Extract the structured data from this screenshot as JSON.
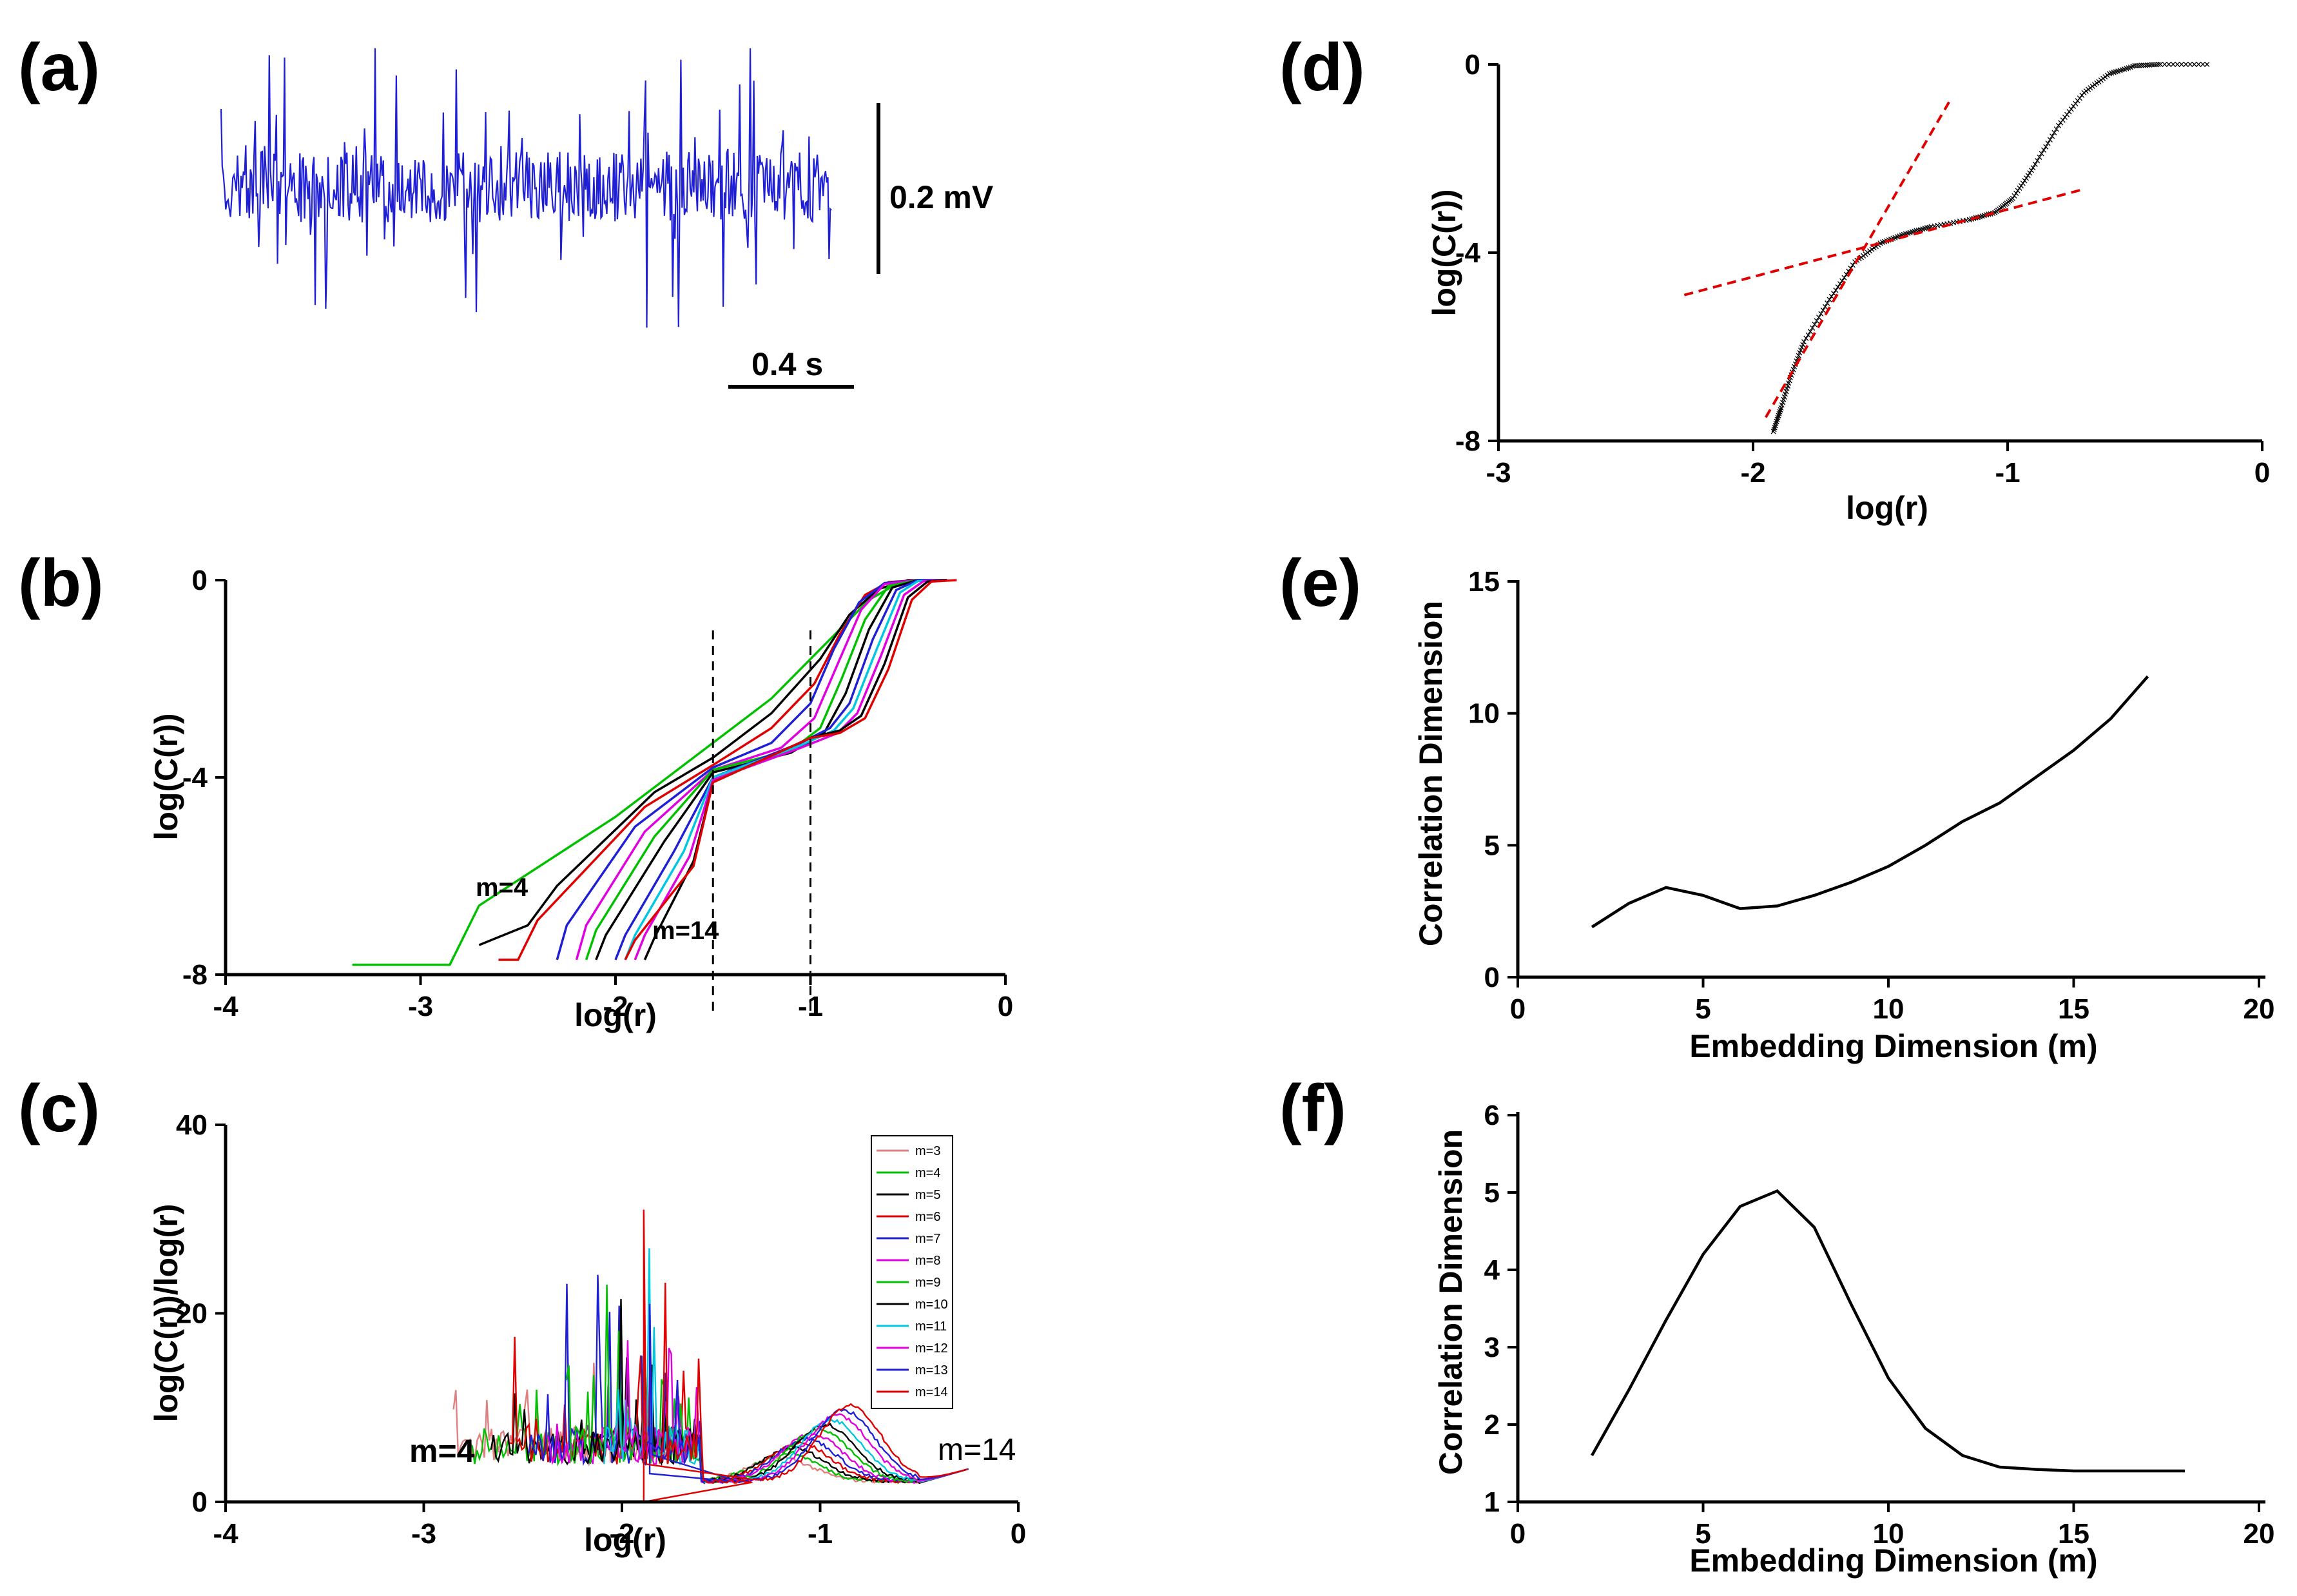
{
  "chart_data": [
    {
      "panel": "(a)",
      "type": "line",
      "title": "",
      "xlabel": "",
      "ylabel": "",
      "scale_bars": {
        "vertical": "0.2 mV",
        "horizontal": "0.4 s"
      },
      "series": [
        {
          "color": "#1f1fd6",
          "description_samples": 520,
          "values": []
        }
      ]
    },
    {
      "panel": "(b)",
      "type": "line",
      "xlabel": "log(r)",
      "ylabel": "log(C(r))",
      "xlim": [
        -4,
        0
      ],
      "ylim": [
        -8,
        0
      ],
      "xticks": [
        "-4",
        "-3",
        "-2",
        "-1",
        "0"
      ],
      "yticks": [
        "-8",
        "-4",
        "0"
      ],
      "annotations": [
        "m=4",
        "m=14"
      ],
      "vlines": [
        -1.5,
        -1.0
      ],
      "series": [
        {
          "name": "m=3",
          "color": "#00c000",
          "points": [
            [
              -3.35,
              -7.8
            ],
            [
              -2.85,
              -7.8
            ],
            [
              -2.7,
              -6.6
            ],
            [
              -2.0,
              -4.8
            ],
            [
              -1.2,
              -2.4
            ],
            [
              -0.9,
              -1.2
            ],
            [
              -0.7,
              -0.4
            ],
            [
              -0.55,
              -0.06
            ],
            [
              -0.45,
              0
            ],
            [
              -0.3,
              0
            ]
          ]
        },
        {
          "name": "m=4",
          "color": "#000000",
          "points": [
            [
              -2.7,
              -7.4
            ],
            [
              -2.45,
              -7.0
            ],
            [
              -2.3,
              -6.2
            ],
            [
              -1.8,
              -4.3
            ],
            [
              -1.5,
              -3.6
            ],
            [
              -1.2,
              -2.7
            ],
            [
              -0.95,
              -1.6
            ],
            [
              -0.8,
              -0.7
            ],
            [
              -0.65,
              -0.18
            ],
            [
              -0.5,
              0
            ],
            [
              -0.3,
              0
            ]
          ]
        },
        {
          "name": "m=5",
          "color": "#e00000",
          "points": [
            [
              -2.6,
              -7.7
            ],
            [
              -2.5,
              -7.7
            ],
            [
              -2.4,
              -6.9
            ],
            [
              -1.85,
              -4.6
            ],
            [
              -1.5,
              -3.75
            ],
            [
              -1.2,
              -3.0
            ],
            [
              -0.98,
              -2.1
            ],
            [
              -0.85,
              -1.1
            ],
            [
              -0.72,
              -0.3
            ],
            [
              -0.6,
              -0.04
            ],
            [
              -0.45,
              0
            ],
            [
              -0.3,
              0
            ]
          ]
        },
        {
          "name": "m=6",
          "color": "#1f1fd6",
          "points": [
            [
              -2.3,
              -7.7
            ],
            [
              -2.25,
              -7.0
            ],
            [
              -1.9,
              -5.0
            ],
            [
              -1.5,
              -3.8
            ],
            [
              -1.2,
              -3.3
            ],
            [
              -1.0,
              -2.5
            ],
            [
              -0.88,
              -1.4
            ],
            [
              -0.75,
              -0.45
            ],
            [
              -0.62,
              -0.06
            ],
            [
              -0.45,
              0
            ],
            [
              -0.3,
              0
            ]
          ]
        },
        {
          "name": "m=7",
          "color": "#e000e0",
          "points": [
            [
              -2.2,
              -7.7
            ],
            [
              -2.15,
              -7.0
            ],
            [
              -1.85,
              -5.1
            ],
            [
              -1.5,
              -3.85
            ],
            [
              -1.15,
              -3.4
            ],
            [
              -0.98,
              -2.8
            ],
            [
              -0.86,
              -1.7
            ],
            [
              -0.74,
              -0.6
            ],
            [
              -0.62,
              -0.08
            ],
            [
              -0.45,
              0
            ],
            [
              -0.3,
              0
            ]
          ]
        },
        {
          "name": "m=8",
          "color": "#00c000",
          "points": [
            [
              -2.15,
              -7.7
            ],
            [
              -2.1,
              -7.1
            ],
            [
              -1.8,
              -5.2
            ],
            [
              -1.5,
              -3.85
            ],
            [
              -1.1,
              -3.45
            ],
            [
              -0.95,
              -3.0
            ],
            [
              -0.84,
              -2.0
            ],
            [
              -0.72,
              -0.8
            ],
            [
              -0.6,
              -0.12
            ],
            [
              -0.45,
              0
            ],
            [
              -0.3,
              0
            ]
          ]
        },
        {
          "name": "m=9",
          "color": "#000000",
          "points": [
            [
              -2.1,
              -7.7
            ],
            [
              -2.05,
              -7.2
            ],
            [
              -1.75,
              -5.3
            ],
            [
              -1.5,
              -3.9
            ],
            [
              -1.1,
              -3.5
            ],
            [
              -0.93,
              -3.1
            ],
            [
              -0.82,
              -2.3
            ],
            [
              -0.7,
              -1.0
            ],
            [
              -0.58,
              -0.15
            ],
            [
              -0.45,
              0
            ],
            [
              -0.3,
              0
            ]
          ]
        },
        {
          "name": "m=10",
          "color": "#1f1fd6",
          "points": [
            [
              -2.0,
              -7.7
            ],
            [
              -1.95,
              -7.2
            ],
            [
              -1.7,
              -5.5
            ],
            [
              -1.5,
              -4.0
            ],
            [
              -1.05,
              -3.3
            ],
            [
              -0.9,
              -3.0
            ],
            [
              -0.8,
              -2.5
            ],
            [
              -0.68,
              -1.2
            ],
            [
              -0.56,
              -0.2
            ],
            [
              -0.45,
              0
            ],
            [
              -0.3,
              0
            ]
          ]
        },
        {
          "name": "m=11",
          "color": "#00c8e0",
          "points": [
            [
              -1.95,
              -7.7
            ],
            [
              -1.9,
              -7.2
            ],
            [
              -1.65,
              -5.5
            ],
            [
              -1.5,
              -4.0
            ],
            [
              -1.05,
              -3.35
            ],
            [
              -0.88,
              -3.05
            ],
            [
              -0.78,
              -2.6
            ],
            [
              -0.66,
              -1.4
            ],
            [
              -0.54,
              -0.25
            ],
            [
              -0.45,
              -0.02
            ],
            [
              -0.3,
              0
            ]
          ]
        },
        {
          "name": "m=12",
          "color": "#e000e0",
          "points": [
            [
              -1.9,
              -7.7
            ],
            [
              -1.85,
              -7.2
            ],
            [
              -1.62,
              -5.6
            ],
            [
              -1.5,
              -4.05
            ],
            [
              -1.05,
              -3.4
            ],
            [
              -0.86,
              -3.1
            ],
            [
              -0.76,
              -2.7
            ],
            [
              -0.64,
              -1.55
            ],
            [
              -0.52,
              -0.3
            ],
            [
              -0.42,
              -0.02
            ],
            [
              -0.3,
              0
            ]
          ]
        },
        {
          "name": "m=13",
          "color": "#000000",
          "points": [
            [
              -1.85,
              -7.7
            ],
            [
              -1.8,
              -7.25
            ],
            [
              -1.6,
              -5.7
            ],
            [
              -1.5,
              -4.1
            ],
            [
              -1.0,
              -3.2
            ],
            [
              -0.85,
              -3.05
            ],
            [
              -0.74,
              -2.75
            ],
            [
              -0.62,
              -1.7
            ],
            [
              -0.5,
              -0.35
            ],
            [
              -0.4,
              -0.03
            ],
            [
              -0.3,
              0
            ]
          ]
        },
        {
          "name": "m=14",
          "color": "#e00000",
          "points": [
            [
              -1.95,
              -7.7
            ],
            [
              -1.9,
              -7.3
            ],
            [
              -1.6,
              -5.8
            ],
            [
              -1.5,
              -4.1
            ],
            [
              -1.0,
              -3.2
            ],
            [
              -0.85,
              -3.1
            ],
            [
              -0.72,
              -2.8
            ],
            [
              -0.6,
              -1.8
            ],
            [
              -0.48,
              -0.4
            ],
            [
              -0.38,
              -0.03
            ],
            [
              -0.25,
              0
            ]
          ]
        }
      ]
    },
    {
      "panel": "(c)",
      "type": "line",
      "xlabel": "log(r)",
      "ylabel": "log(C(r))/log(r)",
      "xlim": [
        -4,
        0
      ],
      "ylim": [
        0,
        40
      ],
      "xticks": [
        "-4",
        "-3",
        "-2",
        "-1",
        "0"
      ],
      "yticks": [
        "0",
        "20",
        "40"
      ],
      "annotations": [
        "m=4",
        "m=14"
      ],
      "legend_position": "top-right",
      "series": [
        {
          "name": "m=3",
          "color": "#e08080"
        },
        {
          "name": "m=4",
          "color": "#00c000"
        },
        {
          "name": "m=5",
          "color": "#000000"
        },
        {
          "name": "m=6",
          "color": "#e00000"
        },
        {
          "name": "m=7",
          "color": "#1f1fd6"
        },
        {
          "name": "m=8",
          "color": "#e000e0"
        },
        {
          "name": "m=9",
          "color": "#00c000"
        },
        {
          "name": "m=10",
          "color": "#000000"
        },
        {
          "name": "m=11",
          "color": "#00c8e0"
        },
        {
          "name": "m=12",
          "color": "#e000e0"
        },
        {
          "name": "m=13",
          "color": "#1f1fd6"
        },
        {
          "name": "m=14",
          "color": "#e00000"
        }
      ]
    },
    {
      "panel": "(d)",
      "type": "scatter",
      "xlabel": "log(r)",
      "ylabel": "log(C(r))",
      "xlim": [
        -3,
        0
      ],
      "ylim": [
        -8,
        0
      ],
      "xticks": [
        "-3",
        "-2",
        "-1",
        "0"
      ],
      "yticks": [
        "-8",
        "-4",
        "0"
      ],
      "curve_color": "#1f1fd6",
      "curve_points": [
        [
          -1.92,
          -7.8
        ],
        [
          -1.89,
          -7.3
        ],
        [
          -1.85,
          -6.6
        ],
        [
          -1.8,
          -5.9
        ],
        [
          -1.7,
          -5.0
        ],
        [
          -1.6,
          -4.2
        ],
        [
          -1.5,
          -3.8
        ],
        [
          -1.4,
          -3.6
        ],
        [
          -1.3,
          -3.45
        ],
        [
          -1.15,
          -3.3
        ],
        [
          -1.05,
          -3.15
        ],
        [
          -0.98,
          -2.85
        ],
        [
          -0.9,
          -2.2
        ],
        [
          -0.8,
          -1.3
        ],
        [
          -0.7,
          -0.6
        ],
        [
          -0.6,
          -0.2
        ],
        [
          -0.5,
          -0.03
        ],
        [
          -0.4,
          0
        ],
        [
          -0.2,
          0
        ]
      ],
      "fit_lines": [
        {
          "color": "#e00000",
          "style": "dashed",
          "x": [
            -1.95,
            -1.23
          ],
          "y": [
            -7.5,
            -0.8
          ]
        },
        {
          "color": "#e00000",
          "style": "dashed",
          "x": [
            -2.27,
            -0.7
          ],
          "y": [
            -4.9,
            -2.65
          ]
        }
      ]
    },
    {
      "panel": "(e)",
      "type": "line",
      "xlabel": "Embedding Dimension (m)",
      "ylabel": "Correlation Dimension",
      "xlim": [
        0,
        20
      ],
      "ylim": [
        0,
        15
      ],
      "xticks": [
        "0",
        "5",
        "10",
        "15",
        "20"
      ],
      "yticks": [
        "0",
        "5",
        "10",
        "15"
      ],
      "x": [
        2,
        3,
        4,
        5,
        6,
        7,
        8,
        9,
        10,
        11,
        12,
        13,
        14,
        15,
        16,
        17
      ],
      "values": [
        1.9,
        2.8,
        3.4,
        3.1,
        2.6,
        2.7,
        3.1,
        3.6,
        4.2,
        5.0,
        5.9,
        6.6,
        7.6,
        8.6,
        9.8,
        11.4
      ]
    },
    {
      "panel": "(f)",
      "type": "line",
      "xlabel": "Embedding Dimension (m)",
      "ylabel": "Correlation Dimension",
      "xlim": [
        0,
        20
      ],
      "ylim": [
        1,
        6
      ],
      "xticks": [
        "0",
        "5",
        "10",
        "15",
        "20"
      ],
      "yticks": [
        "1",
        "2",
        "3",
        "4",
        "5",
        "6"
      ],
      "x": [
        2,
        3,
        4,
        5,
        6,
        7,
        8,
        9,
        10,
        11,
        12,
        13,
        14,
        15,
        16,
        17,
        18
      ],
      "values": [
        1.6,
        2.45,
        3.35,
        4.2,
        4.82,
        5.02,
        4.55,
        3.55,
        2.6,
        1.95,
        1.6,
        1.45,
        1.42,
        1.4,
        1.4,
        1.4,
        1.4
      ]
    }
  ]
}
